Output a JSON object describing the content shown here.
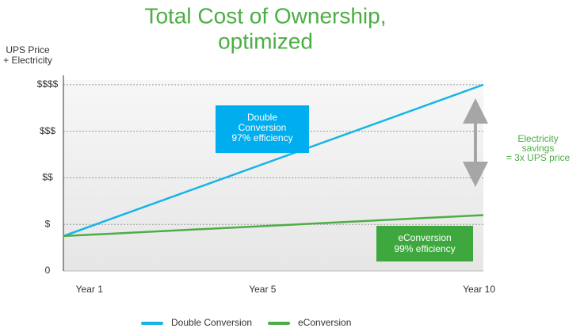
{
  "chart_data": {
    "type": "line",
    "title": [
      "Total Cost of Ownership,",
      "optimized"
    ],
    "y_label": [
      "UPS Price",
      "+ Electricity"
    ],
    "x": [
      0.4,
      10.1
    ],
    "xlim": [
      0.4,
      10.1
    ],
    "xticks": [
      {
        "value": 1,
        "label": "Year 1"
      },
      {
        "value": 5,
        "label": "Year 5"
      },
      {
        "value": 10,
        "label": "Year 10"
      }
    ],
    "ylim": [
      0,
      4.1
    ],
    "yticks": [
      0,
      {
        "value": 1,
        "label": "$"
      },
      {
        "value": 2,
        "label": "$$"
      },
      {
        "value": 3,
        "label": "$$$"
      },
      {
        "value": 4,
        "label": "$$$$"
      }
    ],
    "grid": true,
    "series": [
      {
        "name": "Double Conversion",
        "color": "#17b4e8",
        "values": [
          0.75,
          4.0
        ]
      },
      {
        "name": "eConversion",
        "color": "#4cae45",
        "values": [
          0.75,
          1.2
        ]
      }
    ],
    "annotations": {
      "double_box": [
        "Double",
        "Conversion",
        "97% efficiency"
      ],
      "e_box": [
        "eConversion",
        "99% efficiency"
      ],
      "savings": [
        "Electricity",
        "savings",
        "= 3x UPS price"
      ]
    }
  }
}
